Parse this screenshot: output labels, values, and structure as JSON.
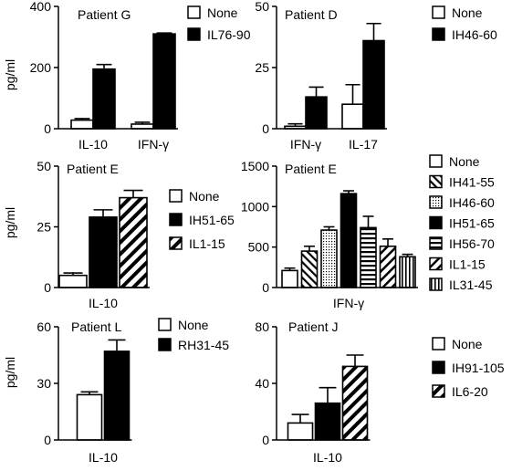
{
  "figure": {
    "y_axis_label": "pg/ml"
  },
  "chart_data": [
    {
      "type": "bar",
      "title": "Patient G",
      "ylabel": "pg/ml",
      "ylim": [
        0,
        400
      ],
      "yticks": [
        0,
        200,
        400
      ],
      "categories": [
        "IL-10",
        "IFN-γ"
      ],
      "series": [
        {
          "name": "None",
          "pattern": "white",
          "values": [
            28,
            15
          ],
          "errors": [
            5,
            6
          ]
        },
        {
          "name": "IL76-90",
          "pattern": "black",
          "values": [
            195,
            310
          ],
          "errors": [
            15,
            3
          ]
        }
      ],
      "legend": "right"
    },
    {
      "type": "bar",
      "title": "Patient D",
      "ylabel": "",
      "ylim": [
        0,
        50
      ],
      "yticks": [
        0,
        25,
        50
      ],
      "categories": [
        "IFN-γ",
        "IL-17"
      ],
      "series": [
        {
          "name": "None",
          "pattern": "white",
          "values": [
            1,
            10
          ],
          "errors": [
            1,
            8
          ]
        },
        {
          "name": "IH46-60",
          "pattern": "black",
          "values": [
            13,
            36
          ],
          "errors": [
            4,
            7
          ]
        }
      ],
      "legend": "right"
    },
    {
      "type": "bar",
      "title": "Patient E",
      "ylabel": "pg/ml",
      "ylim": [
        0,
        50
      ],
      "yticks": [
        0,
        25,
        50
      ],
      "categories": [
        "IL-10"
      ],
      "series": [
        {
          "name": "None",
          "pattern": "white",
          "values": [
            5
          ],
          "errors": [
            1
          ]
        },
        {
          "name": "IH51-65",
          "pattern": "black",
          "values": [
            29
          ],
          "errors": [
            3
          ]
        },
        {
          "name": "IL1-15",
          "pattern": "diag-wide",
          "values": [
            37
          ],
          "errors": [
            3
          ]
        }
      ],
      "legend": "right"
    },
    {
      "type": "bar",
      "title": "Patient E",
      "ylabel": "",
      "ylim": [
        0,
        1500
      ],
      "yticks": [
        0,
        500,
        1000,
        1500
      ],
      "categories": [
        "IFN-γ"
      ],
      "series": [
        {
          "name": "None",
          "pattern": "white",
          "values": [
            210
          ],
          "errors": [
            30
          ]
        },
        {
          "name": "IH41-55",
          "pattern": "diag-back",
          "values": [
            450
          ],
          "errors": [
            60
          ]
        },
        {
          "name": "IH46-60",
          "pattern": "dots",
          "values": [
            710
          ],
          "errors": [
            40
          ]
        },
        {
          "name": "IH51-65",
          "pattern": "black",
          "values": [
            1160
          ],
          "errors": [
            35
          ]
        },
        {
          "name": "IH56-70",
          "pattern": "horizontal",
          "values": [
            740
          ],
          "errors": [
            140
          ]
        },
        {
          "name": "IL1-15",
          "pattern": "diag-fwd",
          "values": [
            510
          ],
          "errors": [
            90
          ]
        },
        {
          "name": "IL31-45",
          "pattern": "vertical",
          "values": [
            380
          ],
          "errors": [
            30
          ]
        }
      ],
      "legend": "right"
    },
    {
      "type": "bar",
      "title": "Patient L",
      "ylabel": "pg/ml",
      "ylim": [
        0,
        60
      ],
      "yticks": [
        0,
        30,
        60
      ],
      "categories": [
        "IL-10"
      ],
      "series": [
        {
          "name": "None",
          "pattern": "white",
          "values": [
            24
          ],
          "errors": [
            1.5
          ]
        },
        {
          "name": "RH31-45",
          "pattern": "black",
          "values": [
            47
          ],
          "errors": [
            6
          ]
        }
      ],
      "legend": "top"
    },
    {
      "type": "bar",
      "title": "Patient J",
      "ylabel": "",
      "ylim": [
        0,
        80
      ],
      "yticks": [
        0,
        40,
        80
      ],
      "categories": [
        "IL-10"
      ],
      "series": [
        {
          "name": "None",
          "pattern": "white",
          "values": [
            12
          ],
          "errors": [
            6
          ]
        },
        {
          "name": "IH91-105",
          "pattern": "black",
          "values": [
            26
          ],
          "errors": [
            11
          ]
        },
        {
          "name": "IL6-20",
          "pattern": "diag-wide",
          "values": [
            52
          ],
          "errors": [
            8
          ]
        }
      ],
      "legend": "right"
    }
  ]
}
